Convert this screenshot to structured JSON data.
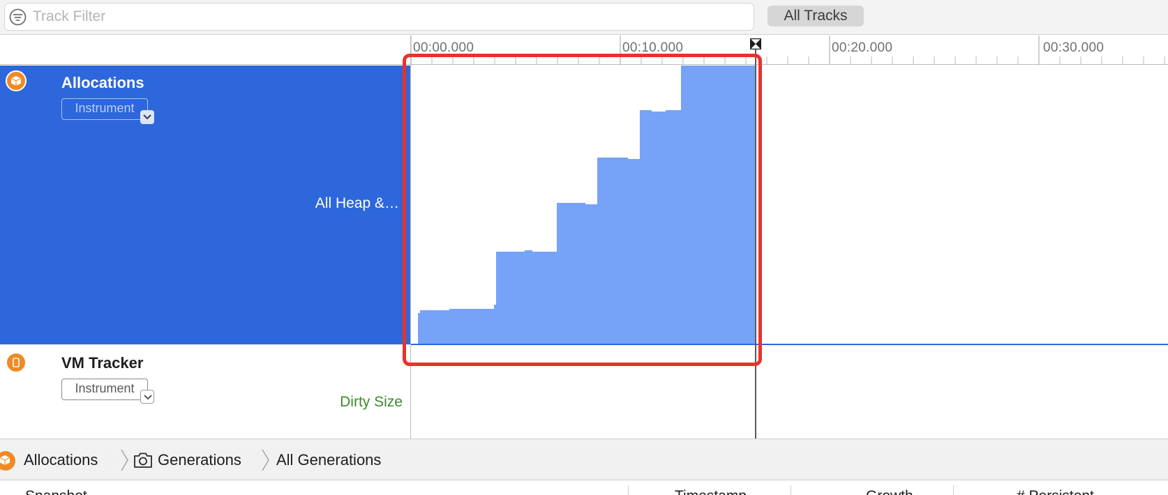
{
  "filter": {
    "placeholder": "Track Filter",
    "icon": "filter-icon",
    "all_tracks_label": "All Tracks"
  },
  "ruler": {
    "labels": [
      "00:00.000",
      "00:10.000",
      "00:20.000",
      "00:30.000"
    ]
  },
  "tracks": [
    {
      "title": "Allocations",
      "icon": "allocations-icon",
      "icon_color": "#f08a24",
      "instrument_label": "Instrument",
      "track_label": "All Heap &…",
      "selected": true,
      "selection_color": "#2d67db"
    },
    {
      "title": "VM Tracker",
      "icon": "vm-tracker-icon",
      "icon_color": "#f08a24",
      "instrument_label": "Instrument",
      "track_label": "Dirty Size",
      "track_label_color": "#3c8a29",
      "selected": false
    }
  ],
  "graph": {
    "fill_color": "#76a3f7"
  },
  "highlight_color": "#e8332a",
  "breadcrumb": {
    "items": [
      {
        "label": "Allocations",
        "icon": "allocations-icon"
      },
      {
        "label": "Generations",
        "icon": "camera-icon"
      },
      {
        "label": "All Generations",
        "icon": ""
      }
    ]
  },
  "table": {
    "columns": [
      "Snapshot",
      "Timestamp",
      "Growth",
      "# Persistent"
    ]
  }
}
